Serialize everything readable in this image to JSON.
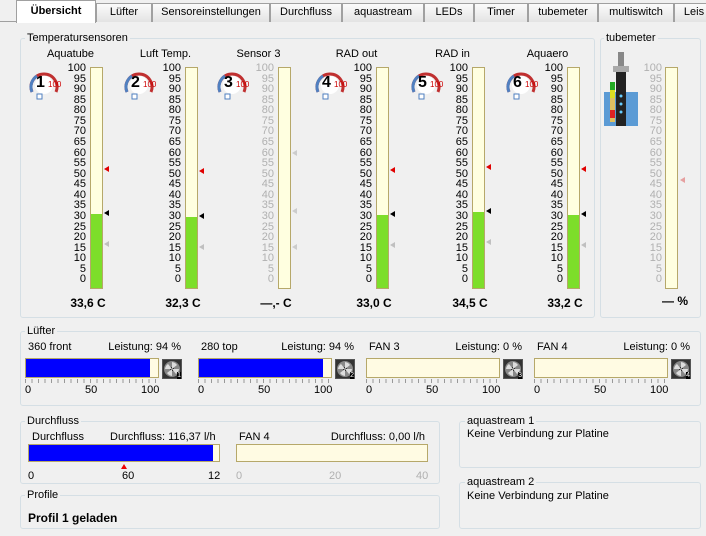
{
  "tabs": [
    "Übersicht",
    "Lüfter",
    "Sensoreinstellungen",
    "Durchfluss",
    "aquastream",
    "LEDs",
    "Timer",
    "tubemeter",
    "multiswitch",
    "Leis"
  ],
  "temp": {
    "title": "Temperatursensoren",
    "scale": [
      "100",
      "95",
      "90",
      "85",
      "80",
      "75",
      "70",
      "65",
      "60",
      "55",
      "50",
      "45",
      "40",
      "35",
      "30",
      "25",
      "20",
      "15",
      "10",
      "5",
      "0"
    ],
    "sensors": [
      {
        "name": "Aquatube",
        "num": "1",
        "value": "33,6 C",
        "fill": 0.336,
        "max": "100",
        "active": true
      },
      {
        "name": "Luft Temp.",
        "num": "2",
        "value": "32,3 C",
        "fill": 0.323,
        "max": "100",
        "active": true
      },
      {
        "name": "Sensor 3",
        "num": "3",
        "value": "—,- C",
        "fill": 0,
        "max": "100",
        "active": false
      },
      {
        "name": "RAD out",
        "num": "4",
        "value": "33,0 C",
        "fill": 0.33,
        "max": "100",
        "active": true
      },
      {
        "name": "RAD in",
        "num": "5",
        "value": "34,5 C",
        "fill": 0.345,
        "max": "100",
        "active": true
      },
      {
        "name": "Aquaero",
        "num": "6",
        "value": "33,2 C",
        "fill": 0.332,
        "max": "100",
        "active": true
      }
    ]
  },
  "tubemeter": {
    "title": "tubemeter",
    "value": "— %"
  },
  "fans": {
    "title": "Lüfter",
    "items": [
      {
        "name": "360 front",
        "label": "Leistung: 94 %",
        "fill": 0.94,
        "num": "1"
      },
      {
        "name": "280 top",
        "label": "Leistung: 94 %",
        "fill": 0.94,
        "num": "2"
      },
      {
        "name": "FAN 3",
        "label": "Leistung: 0 %",
        "fill": 0,
        "num": "3"
      },
      {
        "name": "FAN 4",
        "label": "Leistung: 0 %",
        "fill": 0,
        "num": "4"
      }
    ],
    "ticks": [
      "0",
      "50",
      "100"
    ]
  },
  "flow": {
    "title": "Durchfluss",
    "a_name": "Durchfluss",
    "a_label": "Durchfluss: 116,37 l/h",
    "a_ticks": [
      "0",
      "60",
      "12"
    ],
    "a_fill": 0.97,
    "b_name": "FAN 4",
    "b_label": "Durchfluss: 0,00 l/h",
    "b_ticks": [
      "0",
      "20",
      "40"
    ]
  },
  "aquastream1": {
    "title": "aquastream 1",
    "msg": "Keine Verbindung zur Platine"
  },
  "aquastream2": {
    "title": "aquastream 2",
    "msg": "Keine Verbindung zur Platine"
  },
  "profile": {
    "title": "Profile",
    "msg": "Profil 1 geladen"
  }
}
